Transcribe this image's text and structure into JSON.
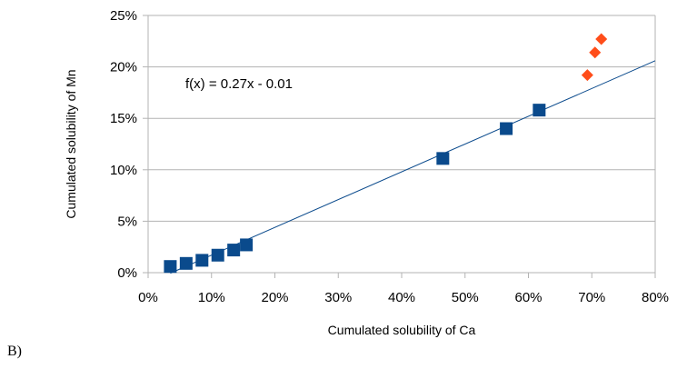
{
  "figure_label": "B)",
  "chart_data": {
    "type": "scatter",
    "xlabel": "Cumulated solubility of Ca",
    "ylabel": "Cumulated solubility of Mn",
    "xlim": [
      0,
      0.8
    ],
    "ylim": [
      0,
      0.25
    ],
    "x_ticks": [
      0,
      0.1,
      0.2,
      0.3,
      0.4,
      0.5,
      0.6,
      0.7,
      0.8
    ],
    "x_tick_labels": [
      "0%",
      "10%",
      "20%",
      "30%",
      "40%",
      "50%",
      "60%",
      "70%",
      "80%"
    ],
    "y_ticks": [
      0,
      0.05,
      0.1,
      0.15,
      0.2,
      0.25
    ],
    "y_tick_labels": [
      "0%",
      "5%",
      "10%",
      "15%",
      "20%",
      "25%"
    ],
    "grid": "horizontal",
    "series": [
      {
        "marker": "square",
        "color": "#0a4a8c",
        "x": [
          0.035,
          0.06,
          0.085,
          0.11,
          0.135,
          0.155,
          0.465,
          0.565,
          0.617
        ],
        "y": [
          0.006,
          0.009,
          0.012,
          0.017,
          0.022,
          0.027,
          0.111,
          0.14,
          0.158
        ]
      },
      {
        "marker": "diamond",
        "color": "#ff4d1a",
        "x": [
          0.693,
          0.705,
          0.715
        ],
        "y": [
          0.192,
          0.214,
          0.227
        ]
      }
    ],
    "trendline": {
      "slope": 0.27,
      "intercept": -0.01,
      "x_range": [
        0.035,
        0.8
      ],
      "color": "#0a4a8c",
      "equation_label": "f(x) = 0.27x - 0.01"
    }
  }
}
